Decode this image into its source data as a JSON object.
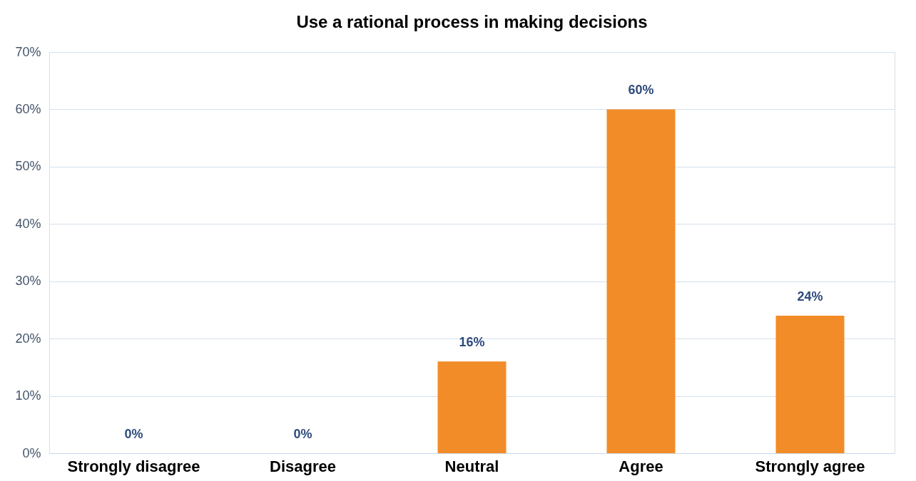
{
  "chart_data": {
    "type": "bar",
    "title": "Use a rational process in making decisions",
    "categories": [
      "Strongly disagree",
      "Disagree",
      "Neutral",
      "Agree",
      "Strongly agree"
    ],
    "values": [
      0,
      0,
      16,
      60,
      24
    ],
    "value_labels": [
      "0%",
      "0%",
      "16%",
      "60%",
      "24%"
    ],
    "color": "#f28c28",
    "ylim": [
      0,
      70
    ],
    "yticks": [
      {
        "value": 0,
        "label": "0%"
      },
      {
        "value": 10,
        "label": "10%"
      },
      {
        "value": 20,
        "label": "20%"
      },
      {
        "value": 30,
        "label": "30%"
      },
      {
        "value": 40,
        "label": "40%"
      },
      {
        "value": 50,
        "label": "50%"
      },
      {
        "value": 60,
        "label": "60%"
      },
      {
        "value": 70,
        "label": "70%"
      }
    ],
    "grid": "y"
  }
}
